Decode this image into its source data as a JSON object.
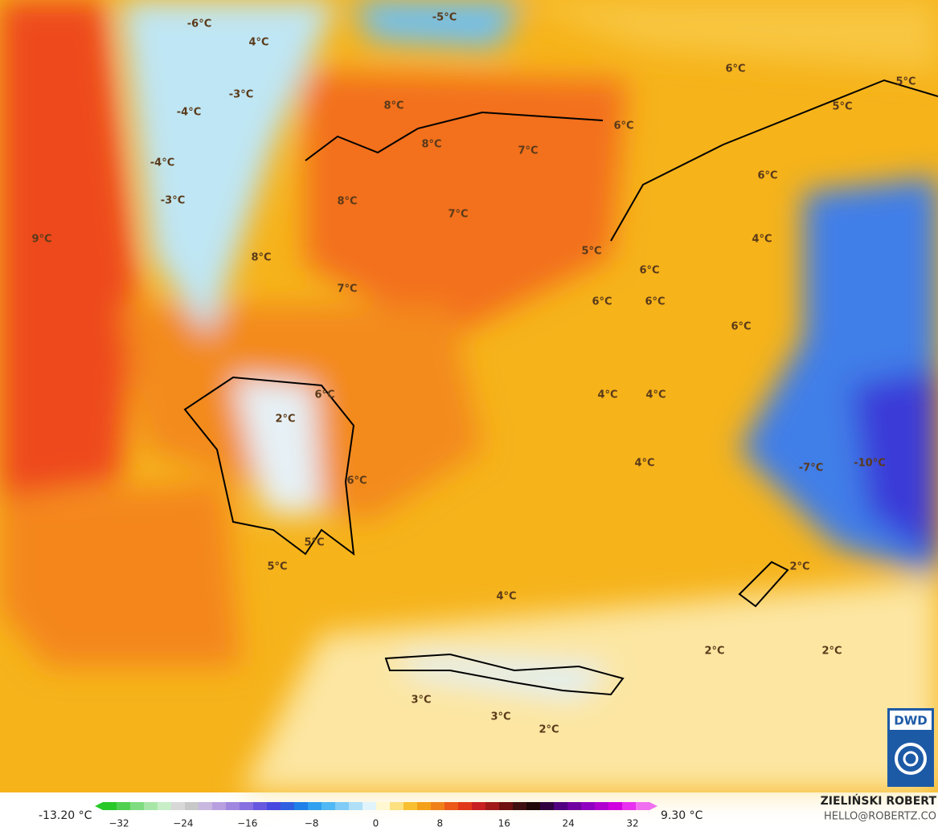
{
  "map": {
    "temperature_labels": [
      "-6°C",
      "-5°C",
      "4°C",
      "-3°C",
      "-4°C",
      "-4°C",
      "-3°C",
      "8°C",
      "8°C",
      "7°C",
      "6°C",
      "5°C",
      "5°C",
      "6°C",
      "6°C",
      "8°C",
      "7°C",
      "9°C",
      "8°C",
      "4°C",
      "5°C",
      "6°C",
      "7°C",
      "6°C",
      "6°C",
      "6°C",
      "6°C",
      "4°C",
      "4°C",
      "2°C",
      "4°C",
      "-7°C",
      "-10°C",
      "6°C",
      "5°C",
      "5°C",
      "2°C",
      "4°C",
      "2°C",
      "2°C",
      "3°C",
      "3°C",
      "2°C"
    ]
  },
  "colorbar": {
    "min_label": "-13.20 °C",
    "max_label": "9.30 °C",
    "ticks": [
      "−32",
      "−24",
      "−16",
      "−8",
      "0",
      "8",
      "16",
      "24",
      "32"
    ]
  },
  "credits": {
    "author": "ZIELIŃSKI ROBERT",
    "contact": "HELLO@ROBERTZ.CO",
    "logo": "DWD"
  }
}
